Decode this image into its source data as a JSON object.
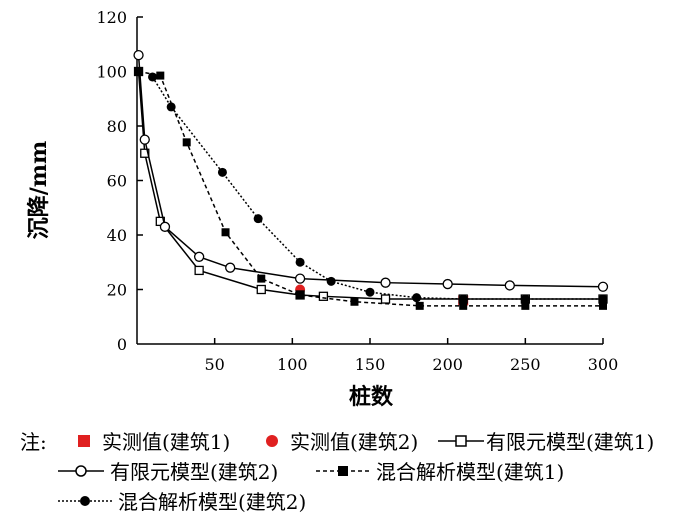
{
  "chart_data": {
    "type": "line",
    "xlabel": "桩数",
    "ylabel": "沉降/mm",
    "xlim": [
      0,
      300
    ],
    "ylim": [
      0,
      120
    ],
    "xticks": [
      50,
      100,
      150,
      200,
      250,
      300
    ],
    "yticks": [
      0,
      20,
      40,
      60,
      80,
      100,
      120
    ],
    "grid": false,
    "legend_position": "bottom",
    "series": [
      {
        "name": "实测值(建筑1)",
        "style": "red-square-marker",
        "x": [
          210
        ],
        "y": [
          16
        ]
      },
      {
        "name": "实测值(建筑2)",
        "style": "red-circle-marker",
        "x": [
          105
        ],
        "y": [
          20
        ]
      },
      {
        "name": "有限元模型(建筑1)",
        "style": "solid-open-square",
        "x": [
          1,
          5,
          15,
          40,
          80,
          105,
          120,
          160,
          210,
          250,
          300
        ],
        "y": [
          100,
          70,
          45,
          27,
          20,
          18,
          17.5,
          16.5,
          16.5,
          16.5,
          16.5
        ]
      },
      {
        "name": "有限元模型(建筑2)",
        "style": "solid-open-circle",
        "x": [
          1,
          5,
          18,
          40,
          60,
          105,
          160,
          200,
          240,
          300
        ],
        "y": [
          106,
          75,
          43,
          32,
          28,
          24,
          22.5,
          22,
          21.5,
          21
        ]
      },
      {
        "name": "混合解析模型(建筑1)",
        "style": "dashed-filled-square",
        "x": [
          1,
          15,
          32,
          57,
          80,
          105,
          140,
          182,
          210,
          250,
          300
        ],
        "y": [
          100,
          98.5,
          74,
          41,
          24,
          18,
          15.5,
          14,
          14,
          14,
          14
        ]
      },
      {
        "name": "混合解析模型(建筑2)",
        "style": "dotted-filled-circle",
        "x": [
          10,
          22,
          55,
          78,
          105,
          125,
          150,
          180,
          210,
          250,
          300
        ],
        "y": [
          98,
          87,
          63,
          46,
          30,
          23,
          19,
          17,
          16.5,
          16.5,
          16.5
        ]
      }
    ]
  },
  "legend": {
    "prefix": "注:",
    "items": [
      "实测值(建筑1)",
      "实测值(建筑2)",
      "有限元模型(建筑1)",
      "有限元模型(建筑2)",
      "混合解析模型(建筑1)",
      "混合解析模型(建筑2)"
    ]
  }
}
